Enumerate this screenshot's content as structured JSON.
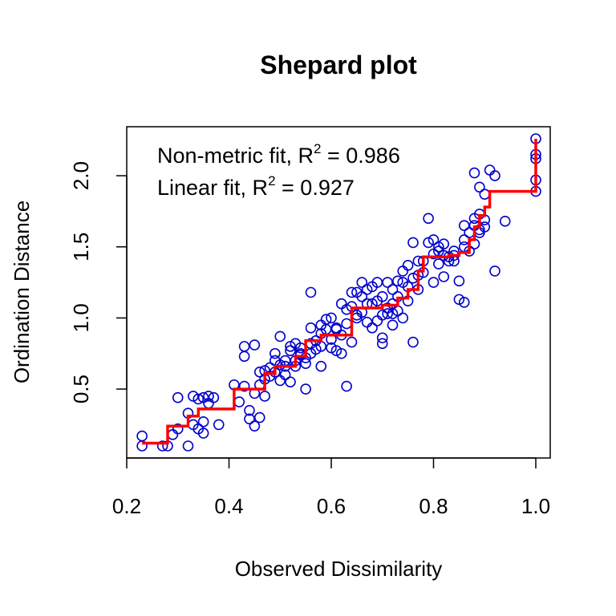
{
  "chart_data": {
    "type": "scatter",
    "title": "Shepard plot",
    "xlabel": "Observed Dissimilarity",
    "ylabel": "Ordination Distance",
    "xlim": [
      0.2,
      1.0
    ],
    "ylim": [
      0.05,
      2.3
    ],
    "x_ticks": [
      0.2,
      0.4,
      0.6,
      0.8,
      1.0
    ],
    "x_tick_labels": [
      "0.2",
      "0.4",
      "0.6",
      "0.8",
      "1.0"
    ],
    "y_ticks": [
      0.5,
      1.0,
      1.5,
      2.0
    ],
    "y_tick_labels": [
      "0.5",
      "1.0",
      "1.5",
      "2.0"
    ],
    "grid": false,
    "annotations": [
      {
        "prefix": "Non-metric fit, R",
        "sup": "2",
        "suffix": " = 0.986"
      },
      {
        "prefix": "Linear fit, R",
        "sup": "2",
        "suffix": " = 0.927"
      }
    ],
    "colors": {
      "points": "#0000cd",
      "fit_line": "#ff0000"
    },
    "points": [
      [
        0.23,
        0.1
      ],
      [
        0.23,
        0.17
      ],
      [
        0.27,
        0.1
      ],
      [
        0.28,
        0.1
      ],
      [
        0.29,
        0.18
      ],
      [
        0.3,
        0.22
      ],
      [
        0.3,
        0.44
      ],
      [
        0.32,
        0.33
      ],
      [
        0.32,
        0.1
      ],
      [
        0.33,
        0.25
      ],
      [
        0.33,
        0.45
      ],
      [
        0.34,
        0.43
      ],
      [
        0.34,
        0.22
      ],
      [
        0.35,
        0.19
      ],
      [
        0.35,
        0.44
      ],
      [
        0.35,
        0.27
      ],
      [
        0.36,
        0.4
      ],
      [
        0.36,
        0.45
      ],
      [
        0.37,
        0.44
      ],
      [
        0.38,
        0.25
      ],
      [
        0.41,
        0.53
      ],
      [
        0.42,
        0.41
      ],
      [
        0.43,
        0.73
      ],
      [
        0.43,
        0.8
      ],
      [
        0.44,
        0.35
      ],
      [
        0.44,
        0.29
      ],
      [
        0.45,
        0.81
      ],
      [
        0.45,
        0.47
      ],
      [
        0.45,
        0.24
      ],
      [
        0.46,
        0.3
      ],
      [
        0.46,
        0.53
      ],
      [
        0.47,
        0.45
      ],
      [
        0.47,
        0.57
      ],
      [
        0.47,
        0.63
      ],
      [
        0.48,
        0.65
      ],
      [
        0.48,
        0.59
      ],
      [
        0.49,
        0.62
      ],
      [
        0.49,
        0.75
      ],
      [
        0.5,
        0.87
      ],
      [
        0.5,
        0.56
      ],
      [
        0.5,
        0.67
      ],
      [
        0.51,
        0.6
      ],
      [
        0.51,
        0.7
      ],
      [
        0.52,
        0.8
      ],
      [
        0.52,
        0.55
      ],
      [
        0.53,
        0.82
      ],
      [
        0.53,
        0.66
      ],
      [
        0.54,
        0.74
      ],
      [
        0.54,
        0.79
      ],
      [
        0.55,
        0.68
      ],
      [
        0.55,
        0.5
      ],
      [
        0.55,
        0.72
      ],
      [
        0.56,
        0.75
      ],
      [
        0.56,
        1.18
      ],
      [
        0.56,
        0.93
      ],
      [
        0.57,
        0.84
      ],
      [
        0.58,
        0.89
      ],
      [
        0.58,
        0.66
      ],
      [
        0.59,
        0.99
      ],
      [
        0.6,
        0.79
      ],
      [
        0.6,
        0.85
      ],
      [
        0.61,
        0.77
      ],
      [
        0.61,
        0.92
      ],
      [
        0.62,
        1.1
      ],
      [
        0.62,
        0.75
      ],
      [
        0.63,
        0.52
      ],
      [
        0.63,
        0.96
      ],
      [
        0.64,
        0.83
      ],
      [
        0.64,
        1.08
      ],
      [
        0.65,
        1.0
      ],
      [
        0.65,
        1.18
      ],
      [
        0.66,
        1.04
      ],
      [
        0.66,
        1.25
      ],
      [
        0.67,
        0.97
      ],
      [
        0.67,
        1.2
      ],
      [
        0.68,
        0.93
      ],
      [
        0.68,
        1.1
      ],
      [
        0.69,
        1.25
      ],
      [
        0.69,
        0.98
      ],
      [
        0.7,
        0.86
      ],
      [
        0.7,
        1.02
      ],
      [
        0.7,
        0.82
      ],
      [
        0.71,
        1.07
      ],
      [
        0.71,
        1.25
      ],
      [
        0.72,
        0.95
      ],
      [
        0.72,
        1.03
      ],
      [
        0.73,
        1.15
      ],
      [
        0.73,
        1.05
      ],
      [
        0.74,
        1.25
      ],
      [
        0.74,
        1.33
      ],
      [
        0.75,
        1.12
      ],
      [
        0.75,
        1.37
      ],
      [
        0.76,
        0.83
      ],
      [
        0.76,
        1.53
      ],
      [
        0.76,
        1.28
      ],
      [
        0.77,
        1.4
      ],
      [
        0.77,
        1.2
      ],
      [
        0.78,
        1.32
      ],
      [
        0.79,
        1.7
      ],
      [
        0.79,
        1.53
      ],
      [
        0.8,
        1.25
      ],
      [
        0.8,
        1.45
      ],
      [
        0.81,
        1.47
      ],
      [
        0.81,
        1.38
      ],
      [
        0.82,
        1.44
      ],
      [
        0.82,
        1.29
      ],
      [
        0.83,
        1.4
      ],
      [
        0.84,
        1.44
      ],
      [
        0.84,
        1.47
      ],
      [
        0.85,
        1.13
      ],
      [
        0.85,
        1.26
      ],
      [
        0.86,
        1.55
      ],
      [
        0.86,
        1.65
      ],
      [
        0.86,
        1.11
      ],
      [
        0.87,
        1.47
      ],
      [
        0.88,
        2.02
      ],
      [
        0.88,
        1.7
      ],
      [
        0.88,
        1.52
      ],
      [
        0.89,
        1.6
      ],
      [
        0.89,
        1.73
      ],
      [
        0.89,
        1.92
      ],
      [
        0.9,
        1.87
      ],
      [
        0.9,
        1.64
      ],
      [
        0.9,
        1.69
      ],
      [
        0.91,
        2.04
      ],
      [
        0.92,
        2.0
      ],
      [
        0.92,
        1.33
      ],
      [
        0.94,
        1.68
      ],
      [
        1.0,
        1.89
      ],
      [
        1.0,
        1.97
      ],
      [
        1.0,
        2.12
      ],
      [
        1.0,
        2.15
      ],
      [
        1.0,
        2.26
      ],
      [
        0.43,
        0.52
      ],
      [
        0.52,
        0.77
      ],
      [
        0.58,
        0.95
      ],
      [
        0.62,
        0.88
      ],
      [
        0.66,
        1.15
      ],
      [
        0.68,
        1.22
      ],
      [
        0.7,
        1.15
      ],
      [
        0.72,
        1.2
      ],
      [
        0.73,
        1.26
      ],
      [
        0.74,
        1.0
      ],
      [
        0.78,
        1.4
      ],
      [
        0.8,
        1.55
      ],
      [
        0.82,
        1.52
      ],
      [
        0.84,
        1.4
      ],
      [
        0.87,
        1.6
      ],
      [
        0.88,
        1.65
      ],
      [
        0.89,
        1.62
      ],
      [
        0.63,
        1.06
      ],
      [
        0.67,
        1.1
      ],
      [
        0.49,
        0.7
      ],
      [
        0.54,
        0.75
      ],
      [
        0.57,
        0.78
      ],
      [
        0.59,
        0.92
      ],
      [
        0.6,
        1.0
      ],
      [
        0.64,
        1.18
      ],
      [
        0.71,
        1.03
      ],
      [
        0.75,
        1.22
      ],
      [
        0.77,
        1.3
      ],
      [
        0.81,
        1.5
      ],
      [
        0.83,
        1.43
      ],
      [
        0.86,
        1.5
      ],
      [
        0.61,
        0.93
      ],
      [
        0.65,
        1.02
      ],
      [
        0.69,
        1.12
      ],
      [
        0.72,
        1.1
      ],
      [
        0.46,
        0.62
      ],
      [
        0.51,
        0.66
      ],
      [
        0.53,
        0.7
      ],
      [
        0.56,
        0.82
      ],
      [
        0.58,
        0.8
      ]
    ],
    "step_line": [
      [
        0.23,
        0.12
      ],
      [
        0.28,
        0.12
      ],
      [
        0.28,
        0.24
      ],
      [
        0.32,
        0.24
      ],
      [
        0.32,
        0.31
      ],
      [
        0.34,
        0.31
      ],
      [
        0.34,
        0.36
      ],
      [
        0.41,
        0.36
      ],
      [
        0.41,
        0.5
      ],
      [
        0.47,
        0.5
      ],
      [
        0.47,
        0.61
      ],
      [
        0.49,
        0.61
      ],
      [
        0.49,
        0.66
      ],
      [
        0.53,
        0.66
      ],
      [
        0.53,
        0.73
      ],
      [
        0.55,
        0.73
      ],
      [
        0.55,
        0.84
      ],
      [
        0.58,
        0.84
      ],
      [
        0.58,
        0.88
      ],
      [
        0.64,
        0.88
      ],
      [
        0.64,
        1.07
      ],
      [
        0.7,
        1.07
      ],
      [
        0.7,
        1.09
      ],
      [
        0.73,
        1.09
      ],
      [
        0.73,
        1.14
      ],
      [
        0.75,
        1.14
      ],
      [
        0.75,
        1.2
      ],
      [
        0.77,
        1.2
      ],
      [
        0.77,
        1.33
      ],
      [
        0.78,
        1.33
      ],
      [
        0.78,
        1.43
      ],
      [
        0.83,
        1.43
      ],
      [
        0.83,
        1.44
      ],
      [
        0.85,
        1.44
      ],
      [
        0.85,
        1.46
      ],
      [
        0.87,
        1.46
      ],
      [
        0.87,
        1.55
      ],
      [
        0.88,
        1.55
      ],
      [
        0.88,
        1.64
      ],
      [
        0.89,
        1.64
      ],
      [
        0.89,
        1.72
      ],
      [
        0.9,
        1.72
      ],
      [
        0.9,
        1.78
      ],
      [
        0.91,
        1.78
      ],
      [
        0.91,
        1.89
      ],
      [
        0.95,
        1.89
      ],
      [
        0.95,
        1.89
      ],
      [
        1.0,
        1.89
      ],
      [
        1.0,
        2.26
      ]
    ]
  }
}
